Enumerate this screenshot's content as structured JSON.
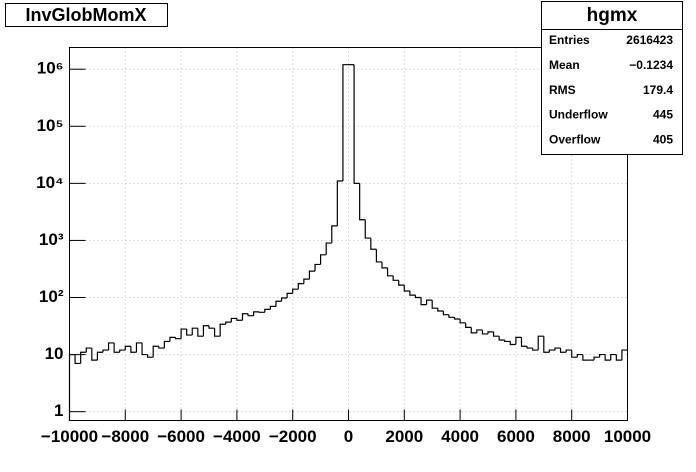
{
  "chart_data": {
    "type": "histogram",
    "title": "InvGlobMomX",
    "bins": [
      -10000,
      -9800,
      -9600,
      -9400,
      -9200,
      -9000,
      -8800,
      -8600,
      -8400,
      -8200,
      -8000,
      -7800,
      -7600,
      -7400,
      -7200,
      -7000,
      -6800,
      -6600,
      -6400,
      -6200,
      -6000,
      -5800,
      -5600,
      -5400,
      -5200,
      -5000,
      -4800,
      -4600,
      -4400,
      -4200,
      -4000,
      -3800,
      -3600,
      -3400,
      -3200,
      -3000,
      -2800,
      -2600,
      -2400,
      -2200,
      -2000,
      -1800,
      -1600,
      -1400,
      -1200,
      -1000,
      -800,
      -600,
      -400,
      -200,
      0,
      200,
      400,
      600,
      800,
      1000,
      1200,
      1400,
      1600,
      1800,
      2000,
      2200,
      2400,
      2600,
      2800,
      3000,
      3200,
      3400,
      3600,
      3800,
      4000,
      4200,
      4400,
      4600,
      4800,
      5000,
      5200,
      5400,
      5600,
      5800,
      6000,
      6200,
      6400,
      6600,
      6800,
      7000,
      7200,
      7400,
      7600,
      7800,
      8000,
      8200,
      8400,
      8600,
      8800,
      9000,
      9200,
      9400,
      9600,
      9800,
      10000
    ],
    "values": [
      10,
      7,
      11,
      13,
      8,
      11,
      12,
      16,
      11,
      12,
      14,
      11,
      16,
      10,
      9,
      14,
      13,
      17,
      20,
      19,
      28,
      22,
      29,
      21,
      32,
      29,
      21,
      34,
      37,
      43,
      40,
      52,
      48,
      56,
      55,
      62,
      70,
      86,
      98,
      118,
      140,
      175,
      210,
      290,
      380,
      560,
      900,
      1800,
      11000,
      1200000,
      1200000,
      10000,
      2300,
      1100,
      700,
      420,
      330,
      240,
      200,
      165,
      130,
      110,
      100,
      75,
      90,
      65,
      58,
      50,
      45,
      42,
      36,
      30,
      24,
      27,
      23,
      25,
      21,
      18,
      17,
      15,
      20,
      14,
      13,
      12,
      21,
      11,
      12,
      13,
      11,
      12,
      9,
      10,
      8,
      8,
      9,
      10,
      8,
      10,
      8,
      12
    ],
    "color": "#000000",
    "log_y": true,
    "grid": true,
    "xlim": [
      -10000,
      10000
    ],
    "xticks": [
      {
        "value": -10000,
        "label": "−10000"
      },
      {
        "value": -8000,
        "label": "−8000"
      },
      {
        "value": -6000,
        "label": "−6000"
      },
      {
        "value": -4000,
        "label": "−4000"
      },
      {
        "value": -2000,
        "label": "−2000"
      },
      0,
      2000,
      4000,
      6000,
      8000,
      10000
    ],
    "ylim": [
      0.7,
      2400000
    ],
    "yticks": [
      1,
      10,
      {
        "value": 100,
        "label": "10²"
      },
      {
        "value": 1000,
        "label": "10³"
      },
      {
        "value": 10000,
        "label": "10⁴"
      },
      {
        "value": 100000,
        "label": "10⁵"
      },
      {
        "value": 1000000,
        "label": "10⁶"
      }
    ],
    "stats": {
      "title": "hgmx",
      "rows": [
        {
          "label": "Entries",
          "value": "2616423"
        },
        {
          "label": "Mean",
          "value": "−0.1234"
        },
        {
          "label": "RMS",
          "value": "179.4"
        },
        {
          "label": "Underflow",
          "value": "445"
        },
        {
          "label": "Overflow",
          "value": "405"
        }
      ]
    }
  }
}
